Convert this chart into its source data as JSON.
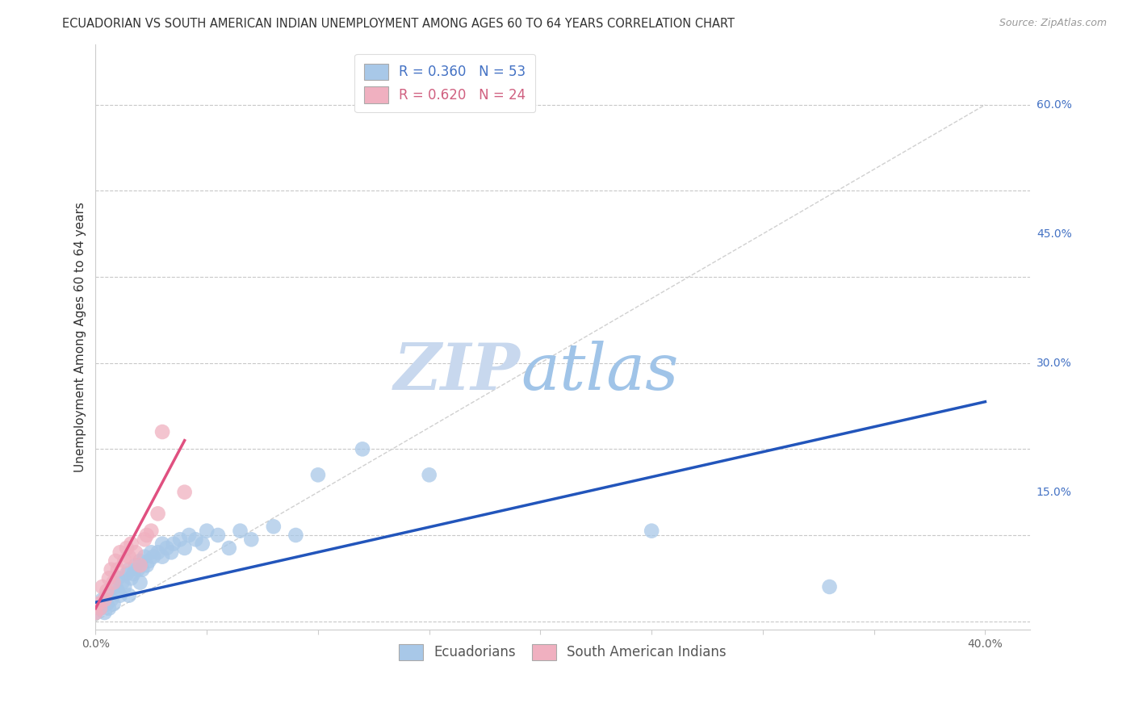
{
  "title": "ECUADORIAN VS SOUTH AMERICAN INDIAN UNEMPLOYMENT AMONG AGES 60 TO 64 YEARS CORRELATION CHART",
  "source": "Source: ZipAtlas.com",
  "ylabel": "Unemployment Among Ages 60 to 64 years",
  "xlim": [
    0.0,
    0.42
  ],
  "ylim": [
    -0.01,
    0.67
  ],
  "xticks": [
    0.0,
    0.05,
    0.1,
    0.15,
    0.2,
    0.25,
    0.3,
    0.35,
    0.4
  ],
  "yticks": [
    0.0,
    0.15,
    0.3,
    0.45,
    0.6
  ],
  "xtick_labels": [
    "0.0%",
    "",
    "",
    "",
    "",
    "",
    "",
    "",
    "40.0%"
  ],
  "ytick_labels_right": [
    "",
    "15.0%",
    "30.0%",
    "45.0%",
    "60.0%"
  ],
  "grid_color": "#c8c8c8",
  "background_color": "#ffffff",
  "blue_R": 0.36,
  "blue_N": 53,
  "pink_R": 0.62,
  "pink_N": 24,
  "blue_color": "#a8c8e8",
  "pink_color": "#f0b0c0",
  "blue_line_color": "#2255bb",
  "pink_line_color": "#e05080",
  "diagonal_color": "#d0d0d0",
  "ecuadorians_x": [
    0.0,
    0.002,
    0.003,
    0.004,
    0.005,
    0.005,
    0.006,
    0.007,
    0.008,
    0.009,
    0.01,
    0.01,
    0.011,
    0.012,
    0.013,
    0.014,
    0.015,
    0.015,
    0.016,
    0.017,
    0.018,
    0.019,
    0.02,
    0.02,
    0.021,
    0.022,
    0.023,
    0.024,
    0.025,
    0.026,
    0.028,
    0.03,
    0.03,
    0.032,
    0.034,
    0.035,
    0.038,
    0.04,
    0.042,
    0.045,
    0.048,
    0.05,
    0.055,
    0.06,
    0.065,
    0.07,
    0.08,
    0.09,
    0.1,
    0.12,
    0.15,
    0.25,
    0.33
  ],
  "ecuadorians_y": [
    0.01,
    0.015,
    0.025,
    0.01,
    0.02,
    0.03,
    0.015,
    0.025,
    0.02,
    0.04,
    0.035,
    0.05,
    0.03,
    0.045,
    0.04,
    0.055,
    0.03,
    0.06,
    0.05,
    0.055,
    0.065,
    0.06,
    0.045,
    0.07,
    0.06,
    0.075,
    0.065,
    0.07,
    0.08,
    0.075,
    0.08,
    0.075,
    0.09,
    0.085,
    0.08,
    0.09,
    0.095,
    0.085,
    0.1,
    0.095,
    0.09,
    0.105,
    0.1,
    0.085,
    0.105,
    0.095,
    0.11,
    0.1,
    0.17,
    0.2,
    0.17,
    0.105,
    0.04
  ],
  "south_american_x": [
    0.0,
    0.001,
    0.002,
    0.003,
    0.004,
    0.005,
    0.006,
    0.007,
    0.008,
    0.009,
    0.01,
    0.011,
    0.013,
    0.014,
    0.015,
    0.016,
    0.018,
    0.02,
    0.022,
    0.023,
    0.025,
    0.028,
    0.03,
    0.04
  ],
  "south_american_y": [
    0.01,
    0.02,
    0.015,
    0.04,
    0.025,
    0.035,
    0.05,
    0.06,
    0.045,
    0.07,
    0.06,
    0.08,
    0.07,
    0.085,
    0.075,
    0.09,
    0.08,
    0.065,
    0.095,
    0.1,
    0.105,
    0.125,
    0.22,
    0.15
  ],
  "blue_line_x": [
    0.0,
    0.4
  ],
  "blue_line_y": [
    0.022,
    0.255
  ],
  "pink_line_x": [
    0.0,
    0.04
  ],
  "pink_line_y": [
    0.015,
    0.21
  ],
  "title_fontsize": 10.5,
  "axis_label_fontsize": 11,
  "tick_fontsize": 10,
  "legend_fontsize": 12
}
